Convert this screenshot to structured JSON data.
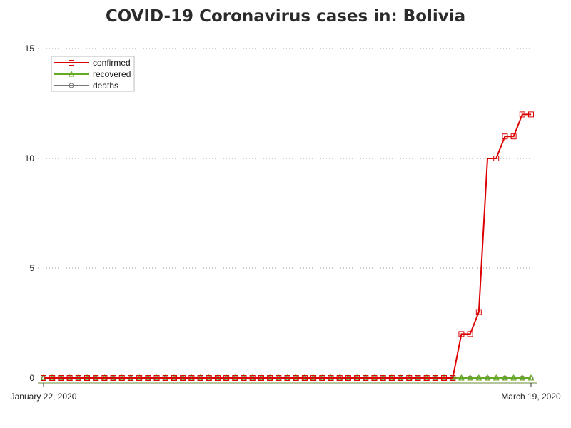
{
  "chart_data": {
    "type": "line",
    "title": "COVID-19 Coronavirus cases in: Bolivia",
    "xlabel": "",
    "ylabel": "",
    "x_tick_labels": [
      "January 22, 2020",
      "March 19, 2020"
    ],
    "x_start": "2020-01-22",
    "x_end": "2020-03-19",
    "y_ticks": [
      0,
      5,
      10,
      15
    ],
    "ylim": [
      0,
      15
    ],
    "grid": true,
    "legend_position": "top-left",
    "series": [
      {
        "name": "confirmed",
        "color": "#dd0000",
        "marker": "square",
        "values": [
          0,
          0,
          0,
          0,
          0,
          0,
          0,
          0,
          0,
          0,
          0,
          0,
          0,
          0,
          0,
          0,
          0,
          0,
          0,
          0,
          0,
          0,
          0,
          0,
          0,
          0,
          0,
          0,
          0,
          0,
          0,
          0,
          0,
          0,
          0,
          0,
          0,
          0,
          0,
          0,
          0,
          0,
          0,
          0,
          0,
          0,
          0,
          0,
          2,
          2,
          3,
          10,
          10,
          11,
          11,
          12,
          12
        ]
      },
      {
        "name": "recovered",
        "color": "#66aa22",
        "marker": "triangle",
        "values": [
          0,
          0,
          0,
          0,
          0,
          0,
          0,
          0,
          0,
          0,
          0,
          0,
          0,
          0,
          0,
          0,
          0,
          0,
          0,
          0,
          0,
          0,
          0,
          0,
          0,
          0,
          0,
          0,
          0,
          0,
          0,
          0,
          0,
          0,
          0,
          0,
          0,
          0,
          0,
          0,
          0,
          0,
          0,
          0,
          0,
          0,
          0,
          0,
          0,
          0,
          0,
          0,
          0,
          0,
          0,
          0,
          0
        ]
      },
      {
        "name": "deaths",
        "color": "#777777",
        "marker": "circle",
        "values": [
          0,
          0,
          0,
          0,
          0,
          0,
          0,
          0,
          0,
          0,
          0,
          0,
          0,
          0,
          0,
          0,
          0,
          0,
          0,
          0,
          0,
          0,
          0,
          0,
          0,
          0,
          0,
          0,
          0,
          0,
          0,
          0,
          0,
          0,
          0,
          0,
          0,
          0,
          0,
          0,
          0,
          0,
          0,
          0,
          0,
          0,
          0,
          0,
          0,
          0,
          0,
          0,
          0,
          0,
          0,
          0,
          0
        ]
      }
    ]
  }
}
